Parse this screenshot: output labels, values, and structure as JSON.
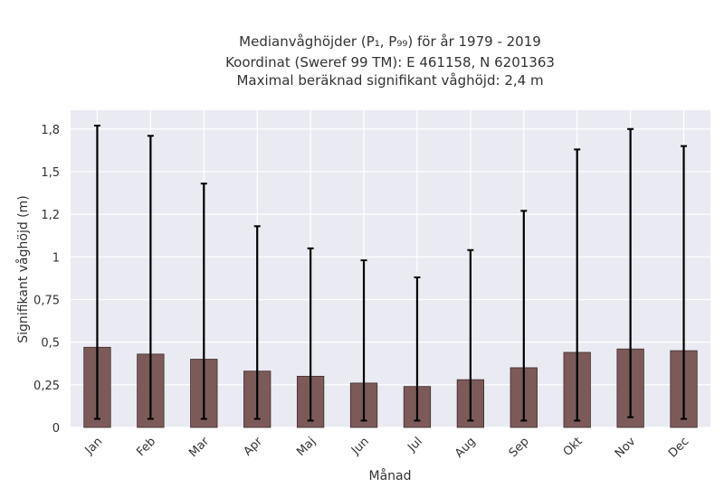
{
  "chart_data": {
    "type": "bar",
    "title_lines": [
      "Medianvåghöjder (P₁, P₉₉) för år 1979 - 2019",
      "Koordinat (Sweref 99 TM): E 461158, N 6201363",
      "Maximal beräknad signifikant våghöjd: 2,4 m"
    ],
    "xlabel": "Månad",
    "ylabel": "Signifikant våghöjd (m)",
    "categories": [
      "Jan",
      "Feb",
      "Mar",
      "Apr",
      "Maj",
      "Jun",
      "Jul",
      "Aug",
      "Sep",
      "Okt",
      "Nov",
      "Dec"
    ],
    "values": [
      0.47,
      0.43,
      0.4,
      0.33,
      0.3,
      0.26,
      0.24,
      0.28,
      0.35,
      0.44,
      0.46,
      0.45
    ],
    "error_low": [
      0.05,
      0.05,
      0.05,
      0.05,
      0.04,
      0.04,
      0.04,
      0.04,
      0.04,
      0.04,
      0.06,
      0.05
    ],
    "error_high": [
      1.77,
      1.71,
      1.43,
      1.18,
      1.05,
      0.98,
      0.88,
      1.04,
      1.27,
      1.63,
      1.75,
      1.65
    ],
    "ylim": [
      0,
      1.86
    ],
    "yticks": [
      0,
      0.25,
      0.5,
      0.75,
      1,
      1.25,
      1.5,
      1.75
    ],
    "ytick_labels": [
      "0",
      "0,25",
      "0,5",
      "0,75",
      "1",
      "1,2",
      "1,5",
      "1,8"
    ],
    "grid": true,
    "colors": {
      "bar": "#7c5a5a",
      "bar_edge": "#3d2b2b",
      "error_bar": "#000000",
      "plot_bg": "#eaeaf2",
      "grid": "#ffffff",
      "text": "#333333"
    }
  }
}
